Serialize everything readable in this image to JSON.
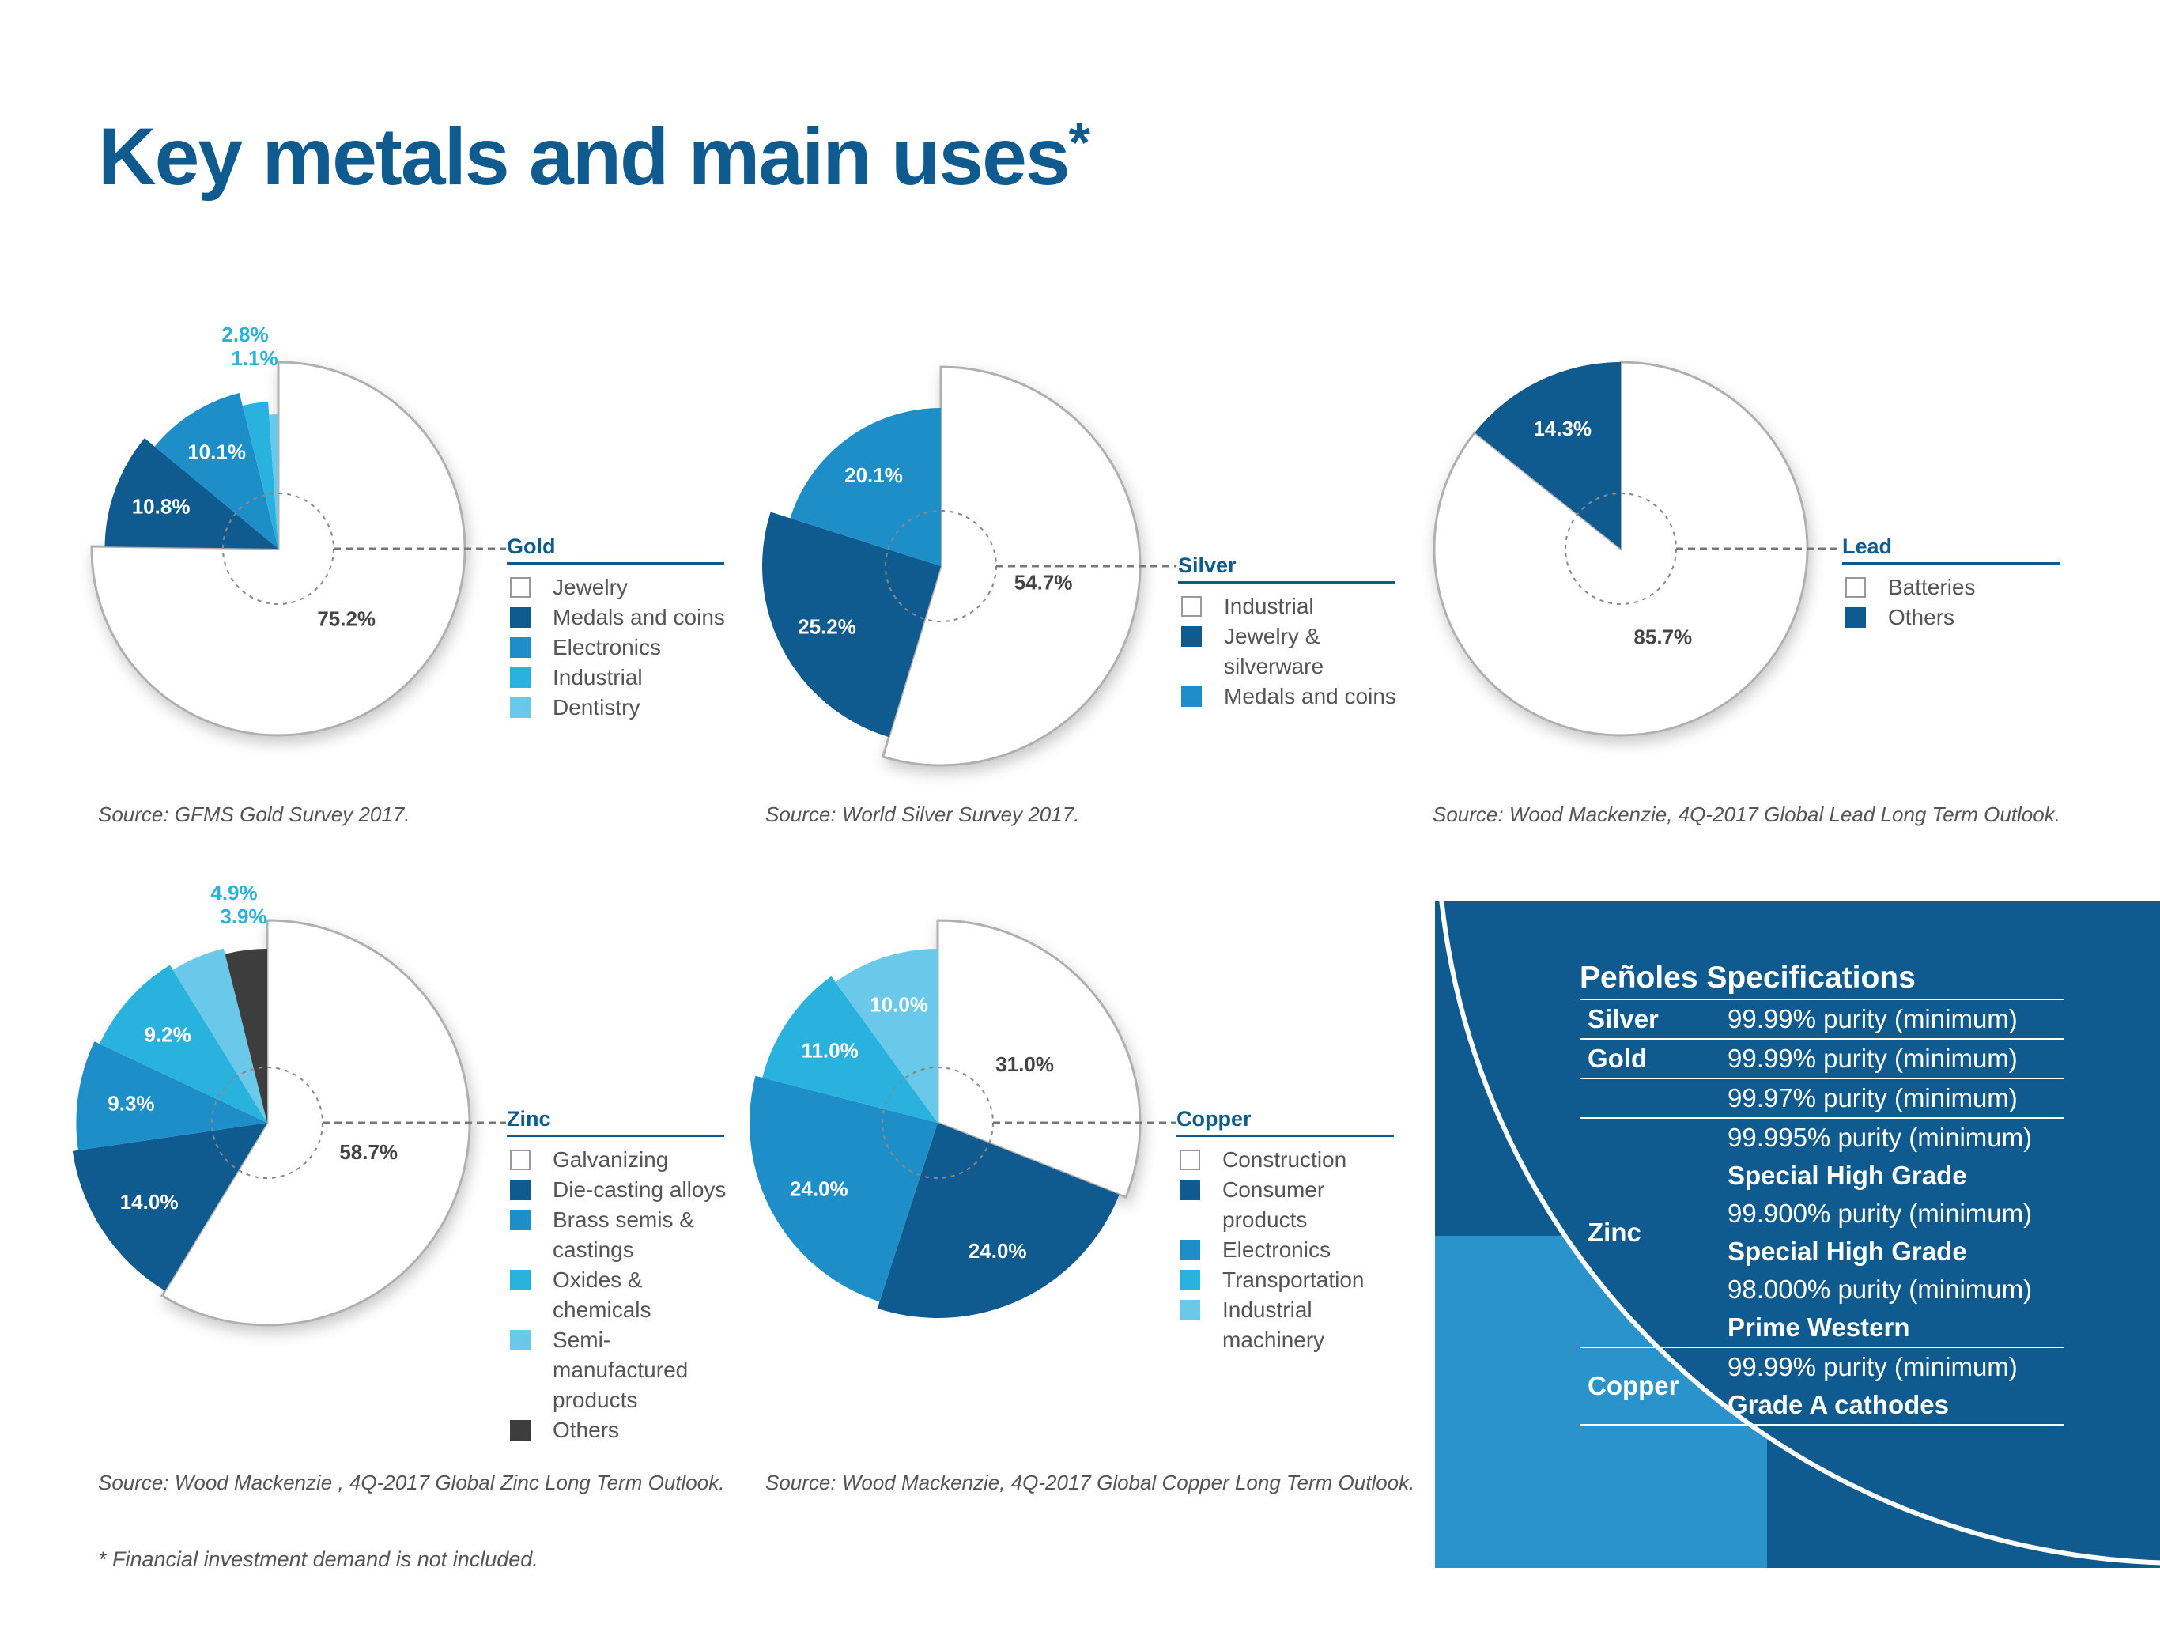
{
  "page": {
    "title": "Key metals and main uses",
    "title_mark": "*",
    "footnote": "* Financial investment demand is not included."
  },
  "colors": {
    "title": "#0f5b8f",
    "white_slice": "#ffffff",
    "dark_blue": "#0f5b8f",
    "mid_blue": "#1e8ec8",
    "cyan": "#29b2de",
    "light_cyan": "#6ac9e8",
    "dark_gray": "#3d3d3d",
    "pct_light": "#29b2de"
  },
  "chart_data": [
    {
      "type": "pie",
      "title": "Gold",
      "source": "Source:  GFMS Gold Survey 2017.",
      "slices": [
        {
          "name": "Jewelry",
          "value": 75.2,
          "label": "75.2%"
        },
        {
          "name": "Medals and coins",
          "value": 10.8,
          "label": "10.8%"
        },
        {
          "name": "Electronics",
          "value": 10.1,
          "label": "10.1%"
        },
        {
          "name": "Industrial",
          "value": 2.8,
          "label": "2.8%"
        },
        {
          "name": "Dentistry",
          "value": 1.1,
          "label": "1.1%"
        }
      ]
    },
    {
      "type": "pie",
      "title": "Silver",
      "source": "Source: World Silver Survey 2017.",
      "slices": [
        {
          "name": "Industrial",
          "value": 54.7,
          "label": "54.7%"
        },
        {
          "name": "Jewelry & silverware",
          "value": 25.2,
          "label": "25.2%"
        },
        {
          "name": "Medals and coins",
          "value": 20.1,
          "label": "20.1%"
        }
      ]
    },
    {
      "type": "pie",
      "title": "Lead",
      "source": "Source: Wood Mackenzie, 4Q-2017 Global Lead Long Term Outlook.",
      "slices": [
        {
          "name": "Batteries",
          "value": 85.7,
          "label": "85.7%"
        },
        {
          "name": "Others",
          "value": 14.3,
          "label": "14.3%"
        }
      ]
    },
    {
      "type": "pie",
      "title": "Zinc",
      "source": "Source: Wood Mackenzie , 4Q-2017 Global Zinc Long Term Outlook.",
      "slices": [
        {
          "name": "Galvanizing",
          "value": 58.7,
          "label": "58.7%"
        },
        {
          "name": "Die-casting alloys",
          "value": 14.0,
          "label": "14.0%"
        },
        {
          "name": "Brass semis & castings",
          "value": 9.3,
          "label": "9.3%"
        },
        {
          "name": "Oxides & chemicals",
          "value": 9.2,
          "label": "9.2%"
        },
        {
          "name": "Semi-manufactured products",
          "value": 4.9,
          "label": "4.9%"
        },
        {
          "name": "Others",
          "value": 3.9,
          "label": "3.9%"
        }
      ]
    },
    {
      "type": "pie",
      "title": "Copper",
      "source": "Source: Wood Mackenzie, 4Q-2017 Global Copper Long Term Outlook.",
      "slices": [
        {
          "name": "Construction",
          "value": 31.0,
          "label": "31.0%"
        },
        {
          "name": "Consumer products",
          "value": 24.0,
          "label": "24.0%"
        },
        {
          "name": "Electronics",
          "value": 24.0,
          "label": "24.0%"
        },
        {
          "name": "Transportation",
          "value": 11.0,
          "label": "11.0%"
        },
        {
          "name": "Industrial machinery",
          "value": 10.0,
          "label": "10.0%"
        }
      ]
    }
  ],
  "specs": {
    "title": "Peñoles Specifications",
    "rows": [
      {
        "metal": "Silver",
        "lines": [
          {
            "text": "99.99% purity (minimum)",
            "bold": false
          }
        ]
      },
      {
        "metal": "Gold",
        "lines": [
          {
            "text": "99.99% purity (minimum)",
            "bold": false
          }
        ]
      },
      {
        "metal": "",
        "lines": [
          {
            "text": "99.97% purity (minimum)",
            "bold": false
          }
        ]
      },
      {
        "metal": "Zinc",
        "lines": [
          {
            "text": "99.995% purity (minimum)",
            "bold": false
          },
          {
            "text": "Special High Grade",
            "bold": true
          },
          {
            "text": "99.900% purity (minimum)",
            "bold": false
          },
          {
            "text": "Special High Grade",
            "bold": true
          },
          {
            "text": "98.000% purity (minimum)",
            "bold": false
          },
          {
            "text": "Prime Western",
            "bold": true
          }
        ]
      },
      {
        "metal": "Copper",
        "lines": [
          {
            "text": "99.99% purity (minimum)",
            "bold": false
          },
          {
            "text": "Grade A cathodes",
            "bold": true
          }
        ]
      }
    ]
  }
}
